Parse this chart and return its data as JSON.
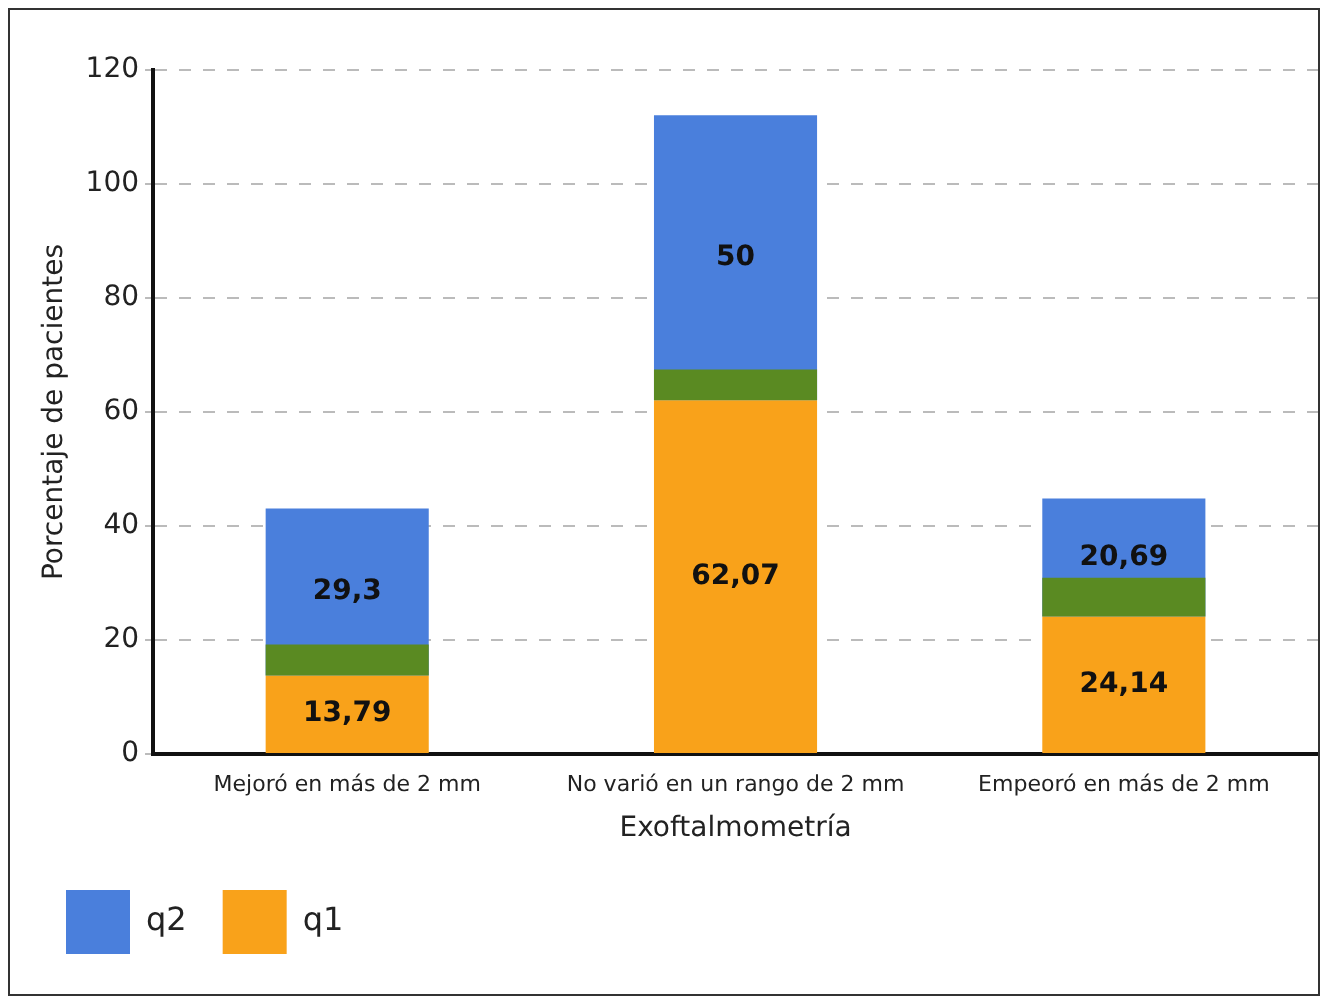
{
  "chart_data": {
    "type": "bar",
    "xlabel": "Exoftalmometría",
    "ylabel": "Porcentaje de pacientes",
    "categories": [
      "Mejoró en más de 2 mm",
      "No varió en un rango de 2 mm",
      "Empeoró en más de 2 mm"
    ],
    "series": [
      {
        "name": "q2",
        "color": "#4a7fdc",
        "base": [
          13.79,
          62.07,
          24.14
        ],
        "values": [
          29.3,
          50,
          20.69
        ],
        "value_labels": [
          "29,3",
          "50",
          "20,69"
        ]
      },
      {
        "name": "q1",
        "color": "#f9a21a",
        "base": [
          0,
          0,
          0
        ],
        "values": [
          13.79,
          62.07,
          24.14
        ],
        "value_labels": [
          "13,79",
          "62,07",
          "24,14"
        ]
      },
      {
        "color": "#5a8a22",
        "base": [
          13.79,
          62.07,
          24.14
        ],
        "values": [
          5.4,
          5.4,
          6.8
        ]
      }
    ],
    "ylim": [
      0,
      120
    ],
    "yticks": [
      0,
      20,
      40,
      60,
      80,
      100,
      120
    ],
    "grid": "y",
    "legend": "bottom"
  }
}
